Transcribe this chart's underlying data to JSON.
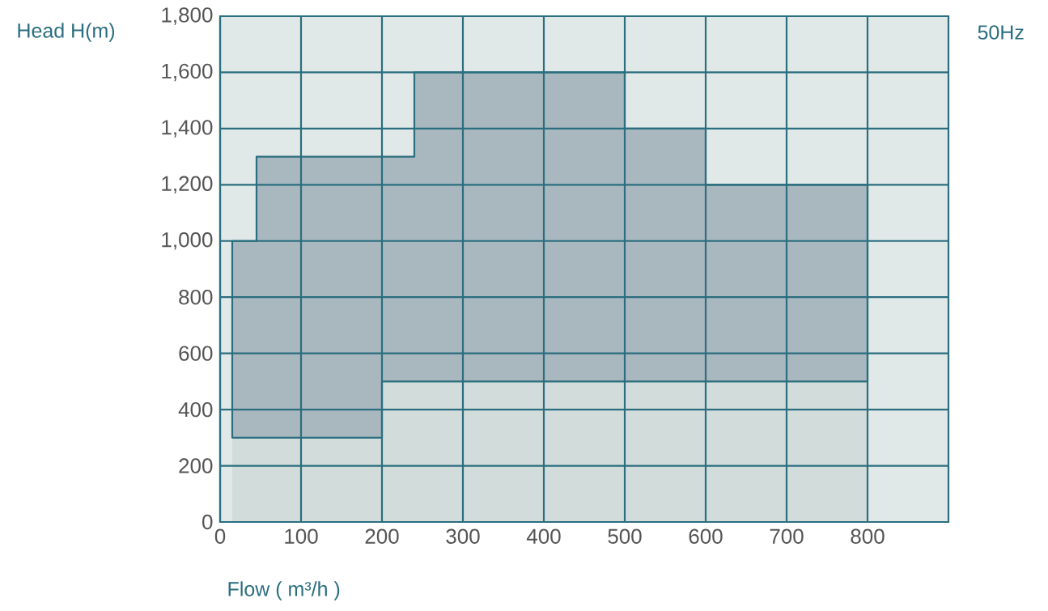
{
  "chart_data": {
    "type": "area",
    "stacked": true,
    "xlabel": "Flow ( m³/h )",
    "ylabel": "Head H(m)",
    "annotations": [
      "50Hz"
    ],
    "x": [
      15,
      45,
      45,
      200,
      200,
      240,
      240,
      500,
      500,
      600,
      600,
      800
    ],
    "series": [
      {
        "color": "#d2dddb",
        "values": [
          300,
          300,
          300,
          300,
          500,
          500,
          500,
          500,
          500,
          500,
          500,
          500
        ]
      },
      {
        "color": "#a9b7bf",
        "values": [
          700,
          700,
          1000,
          1000,
          800,
          800,
          1100,
          1100,
          900,
          900,
          700,
          700
        ]
      }
    ],
    "xlim": [
      0,
      900
    ],
    "xticks": [
      0,
      100,
      200,
      300,
      400,
      500,
      600,
      700,
      800
    ],
    "ylim": [
      0,
      1800
    ],
    "yticks": [
      0,
      200,
      400,
      600,
      800,
      {
        "value": 1000,
        "label": "1,000"
      },
      {
        "value": 1200,
        "label": "1,200"
      },
      {
        "value": 1400,
        "label": "1,400"
      },
      {
        "value": 1600,
        "label": "1,600"
      },
      {
        "value": 1800,
        "label": "1,800"
      }
    ],
    "grid": true
  }
}
